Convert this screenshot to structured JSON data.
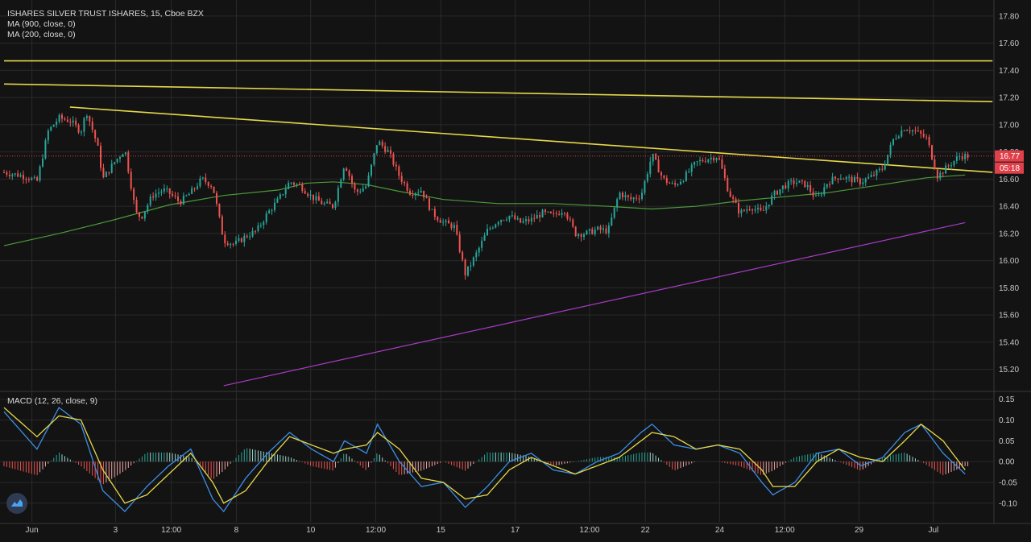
{
  "legend": {
    "symbol": "ISHARES SILVER TRUST ISHARES, 15, Cboe BZX",
    "ma1": "MA (900, close, 0)",
    "ma2": "MA (200, close, 0)",
    "macd": "MACD (12, 26, close, 9)"
  },
  "price_badge": {
    "price": "16.77",
    "countdown": "05:18",
    "color": "#e0404a"
  },
  "colors": {
    "up": "#26a69a",
    "down": "#ef5350",
    "trendline": "#e5d84a",
    "ma900": "#a83bc4",
    "ma200": "#4c9a3a",
    "macd_line": "#3c8ee8",
    "signal_line": "#e5d84a",
    "grid": "#2a2a2a"
  },
  "chart_data": [
    {
      "type": "candlestick",
      "title": "ISHARES SILVER TRUST ISHARES, 15, Cboe BZX",
      "interval": "15",
      "ylim": [
        15.05,
        17.9
      ],
      "y_ticks": [
        "15.20",
        "15.40",
        "15.60",
        "15.80",
        "16.00",
        "16.20",
        "16.40",
        "16.60",
        "16.80",
        "17.00",
        "17.20",
        "17.40",
        "17.60",
        "17.80"
      ],
      "x_ticks": [
        "Jun",
        "3",
        "12:00",
        "8",
        "10",
        "12:00",
        "15",
        "17",
        "12:00",
        "22",
        "24",
        "12:00",
        "29",
        "Jul"
      ],
      "last_price": 16.77,
      "close_path": [
        [
          0,
          16.65
        ],
        [
          4,
          16.62
        ],
        [
          6,
          16.58
        ],
        [
          8,
          16.95
        ],
        [
          10,
          17.05
        ],
        [
          12,
          17.03
        ],
        [
          14,
          16.95
        ],
        [
          15,
          17.1
        ],
        [
          17,
          16.85
        ],
        [
          18,
          16.6
        ],
        [
          20,
          16.72
        ],
        [
          22,
          16.82
        ],
        [
          24,
          16.35
        ],
        [
          25,
          16.32
        ],
        [
          27,
          16.48
        ],
        [
          29,
          16.52
        ],
        [
          30,
          16.5
        ],
        [
          32,
          16.43
        ],
        [
          34,
          16.5
        ],
        [
          36,
          16.6
        ],
        [
          38,
          16.55
        ],
        [
          40,
          16.15
        ],
        [
          42,
          16.12
        ],
        [
          44,
          16.18
        ],
        [
          46,
          16.22
        ],
        [
          48,
          16.35
        ],
        [
          50,
          16.45
        ],
        [
          52,
          16.58
        ],
        [
          54,
          16.55
        ],
        [
          56,
          16.47
        ],
        [
          58,
          16.42
        ],
        [
          60,
          16.4
        ],
        [
          62,
          16.72
        ],
        [
          64,
          16.5
        ],
        [
          66,
          16.55
        ],
        [
          68,
          16.88
        ],
        [
          70,
          16.8
        ],
        [
          72,
          16.62
        ],
        [
          74,
          16.5
        ],
        [
          76,
          16.52
        ],
        [
          78,
          16.35
        ],
        [
          80,
          16.28
        ],
        [
          82,
          16.25
        ],
        [
          84,
          15.9
        ],
        [
          86,
          16.05
        ],
        [
          88,
          16.22
        ],
        [
          90,
          16.3
        ],
        [
          92,
          16.33
        ],
        [
          94,
          16.28
        ],
        [
          96,
          16.3
        ],
        [
          98,
          16.35
        ],
        [
          100,
          16.33
        ],
        [
          102,
          16.38
        ],
        [
          104,
          16.2
        ],
        [
          106,
          16.2
        ],
        [
          108,
          16.23
        ],
        [
          110,
          16.22
        ],
        [
          112,
          16.5
        ],
        [
          114,
          16.45
        ],
        [
          116,
          16.48
        ],
        [
          118,
          16.78
        ],
        [
          120,
          16.6
        ],
        [
          122,
          16.55
        ],
        [
          124,
          16.62
        ],
        [
          126,
          16.72
        ],
        [
          128,
          16.75
        ],
        [
          130,
          16.77
        ],
        [
          132,
          16.5
        ],
        [
          134,
          16.35
        ],
        [
          136,
          16.4
        ],
        [
          138,
          16.35
        ],
        [
          140,
          16.48
        ],
        [
          142,
          16.55
        ],
        [
          144,
          16.58
        ],
        [
          146,
          16.56
        ],
        [
          148,
          16.45
        ],
        [
          150,
          16.58
        ],
        [
          152,
          16.62
        ],
        [
          154,
          16.6
        ],
        [
          156,
          16.58
        ],
        [
          158,
          16.62
        ],
        [
          160,
          16.68
        ],
        [
          162,
          16.9
        ],
        [
          164,
          16.98
        ],
        [
          166,
          16.95
        ],
        [
          168,
          16.9
        ],
        [
          170,
          16.62
        ],
        [
          172,
          16.7
        ],
        [
          174,
          16.77
        ]
      ],
      "x_max": 176,
      "series": [
        {
          "name": "MA (900, close, 0)",
          "line": [
            [
              40,
              15.08
            ],
            [
              175,
              16.28
            ]
          ]
        },
        {
          "name": "MA (200, close, 0)",
          "line": [
            [
              0,
              16.11
            ],
            [
              10,
              16.2
            ],
            [
              20,
              16.3
            ],
            [
              30,
              16.41
            ],
            [
              40,
              16.48
            ],
            [
              50,
              16.52
            ],
            [
              55,
              16.57
            ],
            [
              60,
              16.58
            ],
            [
              66,
              16.56
            ],
            [
              72,
              16.51
            ],
            [
              80,
              16.45
            ],
            [
              90,
              16.42
            ],
            [
              100,
              16.42
            ],
            [
              110,
              16.4
            ],
            [
              118,
              16.38
            ],
            [
              126,
              16.4
            ],
            [
              134,
              16.44
            ],
            [
              142,
              16.47
            ],
            [
              150,
              16.5
            ],
            [
              160,
              16.56
            ],
            [
              168,
              16.61
            ],
            [
              175,
              16.63
            ]
          ]
        }
      ],
      "trendlines": [
        {
          "from": [
            0,
            17.47
          ],
          "to": [
            180,
            17.47
          ]
        },
        {
          "from": [
            0,
            17.3
          ],
          "to": [
            180,
            17.17
          ]
        },
        {
          "from": [
            12,
            17.13
          ],
          "to": [
            180,
            16.65
          ]
        }
      ]
    },
    {
      "type": "line",
      "title": "MACD (12, 26, close, 9)",
      "ylim": [
        -0.145,
        0.165
      ],
      "y_ticks": [
        "0.15",
        "0.10",
        "0.05",
        "0.00",
        "-0.05",
        "-0.10"
      ],
      "series": [
        {
          "name": "macd",
          "values": [
            [
              0,
              0.12
            ],
            [
              6,
              0.03
            ],
            [
              10,
              0.13
            ],
            [
              14,
              0.09
            ],
            [
              18,
              -0.07
            ],
            [
              22,
              -0.12
            ],
            [
              26,
              -0.06
            ],
            [
              30,
              -0.01
            ],
            [
              34,
              0.03
            ],
            [
              38,
              -0.09
            ],
            [
              40,
              -0.12
            ],
            [
              44,
              -0.04
            ],
            [
              48,
              0.02
            ],
            [
              52,
              0.07
            ],
            [
              56,
              0.03
            ],
            [
              60,
              0.0
            ],
            [
              62,
              0.05
            ],
            [
              66,
              0.02
            ],
            [
              68,
              0.09
            ],
            [
              72,
              0.0
            ],
            [
              76,
              -0.06
            ],
            [
              80,
              -0.05
            ],
            [
              84,
              -0.11
            ],
            [
              88,
              -0.06
            ],
            [
              92,
              0.0
            ],
            [
              96,
              0.02
            ],
            [
              100,
              -0.02
            ],
            [
              104,
              -0.03
            ],
            [
              108,
              0.0
            ],
            [
              112,
              0.02
            ],
            [
              116,
              0.07
            ],
            [
              118,
              0.09
            ],
            [
              122,
              0.04
            ],
            [
              126,
              0.03
            ],
            [
              130,
              0.04
            ],
            [
              134,
              0.02
            ],
            [
              138,
              -0.05
            ],
            [
              140,
              -0.08
            ],
            [
              144,
              -0.05
            ],
            [
              148,
              0.02
            ],
            [
              152,
              0.03
            ],
            [
              156,
              -0.01
            ],
            [
              160,
              0.01
            ],
            [
              164,
              0.07
            ],
            [
              167,
              0.09
            ],
            [
              171,
              0.02
            ],
            [
              175,
              -0.03
            ]
          ]
        },
        {
          "name": "signal",
          "values": [
            [
              0,
              0.13
            ],
            [
              6,
              0.06
            ],
            [
              10,
              0.11
            ],
            [
              14,
              0.1
            ],
            [
              18,
              -0.02
            ],
            [
              22,
              -0.1
            ],
            [
              26,
              -0.08
            ],
            [
              30,
              -0.03
            ],
            [
              34,
              0.02
            ],
            [
              38,
              -0.05
            ],
            [
              40,
              -0.1
            ],
            [
              44,
              -0.07
            ],
            [
              48,
              0.0
            ],
            [
              52,
              0.06
            ],
            [
              56,
              0.04
            ],
            [
              60,
              0.02
            ],
            [
              62,
              0.03
            ],
            [
              66,
              0.04
            ],
            [
              68,
              0.07
            ],
            [
              72,
              0.03
            ],
            [
              76,
              -0.04
            ],
            [
              80,
              -0.05
            ],
            [
              84,
              -0.09
            ],
            [
              88,
              -0.08
            ],
            [
              92,
              -0.02
            ],
            [
              96,
              0.01
            ],
            [
              100,
              -0.01
            ],
            [
              104,
              -0.03
            ],
            [
              108,
              -0.01
            ],
            [
              112,
              0.01
            ],
            [
              116,
              0.05
            ],
            [
              118,
              0.07
            ],
            [
              122,
              0.06
            ],
            [
              126,
              0.03
            ],
            [
              130,
              0.04
            ],
            [
              134,
              0.03
            ],
            [
              138,
              -0.02
            ],
            [
              140,
              -0.06
            ],
            [
              144,
              -0.06
            ],
            [
              148,
              0.0
            ],
            [
              152,
              0.03
            ],
            [
              156,
              0.01
            ],
            [
              160,
              0.0
            ],
            [
              164,
              0.05
            ],
            [
              167,
              0.09
            ],
            [
              171,
              0.05
            ],
            [
              175,
              -0.02
            ]
          ]
        }
      ]
    }
  ]
}
